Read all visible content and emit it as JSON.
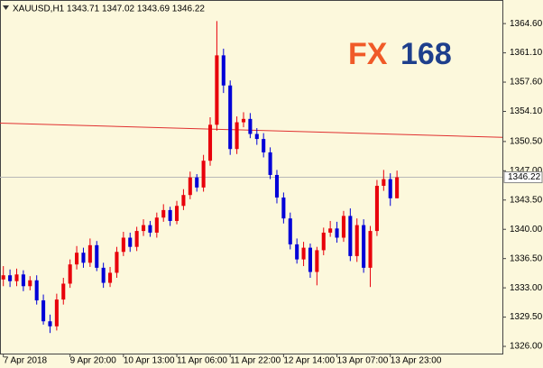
{
  "chart_data": {
    "type": "candlestick",
    "title": "XAUUSD,H1  1343.71 1347.02 1343.69 1346.22",
    "watermark": [
      "FX",
      "168"
    ],
    "bull_color": "#e8000b",
    "bear_color": "#0000d8",
    "open": [
      1334.0,
      1334.5,
      1333.8,
      1334.6,
      1333.2,
      1333.9,
      1331.5,
      1329.0,
      1328.4,
      1331.6,
      1333.5,
      1335.8,
      1337.2,
      1336.0,
      1338.1,
      1335.4,
      1333.6,
      1334.8,
      1337.3,
      1339.0,
      1337.9,
      1339.8,
      1340.5,
      1339.6,
      1341.4,
      1342.3,
      1341.0,
      1342.8,
      1344.1,
      1346.2,
      1345.0,
      1348.2,
      1352.5,
      1360.8,
      1357.2,
      1349.6,
      1352.8,
      1353.2,
      1351.4,
      1350.8,
      1349.2,
      1346.5,
      1343.8,
      1341.3,
      1338.2,
      1336.4,
      1337.8,
      1334.9,
      1337.5,
      1339.6,
      1340.1,
      1339.0,
      1341.6,
      1336.8,
      1340.5,
      1335.4,
      1339.8,
      1345.2,
      1346.0,
      1343.71
    ],
    "high": [
      1335.6,
      1335.2,
      1335.3,
      1335.1,
      1334.4,
      1334.5,
      1332.2,
      1329.8,
      1332.3,
      1334.2,
      1336.4,
      1338.0,
      1337.8,
      1338.9,
      1338.6,
      1336.0,
      1335.5,
      1337.9,
      1339.7,
      1339.6,
      1340.3,
      1341.2,
      1341.0,
      1342.0,
      1343.0,
      1342.7,
      1343.4,
      1344.8,
      1346.9,
      1346.6,
      1348.9,
      1353.4,
      1364.9,
      1361.6,
      1357.8,
      1353.5,
      1354.0,
      1353.9,
      1352.1,
      1351.5,
      1349.8,
      1347.1,
      1344.4,
      1342.0,
      1338.9,
      1338.5,
      1338.3,
      1337.9,
      1340.2,
      1341.0,
      1340.9,
      1342.2,
      1342.5,
      1341.3,
      1341.2,
      1340.4,
      1345.9,
      1347.1,
      1346.7,
      1347.02
    ],
    "low": [
      1333.2,
      1333.1,
      1333.2,
      1332.6,
      1332.7,
      1331.0,
      1328.6,
      1327.6,
      1327.9,
      1331.0,
      1333.0,
      1335.2,
      1335.4,
      1335.5,
      1335.0,
      1333.0,
      1333.1,
      1334.2,
      1336.8,
      1337.3,
      1337.4,
      1339.2,
      1339.1,
      1339.0,
      1340.9,
      1340.4,
      1340.6,
      1342.3,
      1343.6,
      1344.5,
      1344.5,
      1347.6,
      1351.8,
      1356.3,
      1348.9,
      1349.0,
      1352.2,
      1350.9,
      1350.1,
      1348.6,
      1346.0,
      1343.1,
      1340.7,
      1337.6,
      1335.9,
      1335.6,
      1334.2,
      1333.3,
      1336.9,
      1339.1,
      1338.4,
      1338.5,
      1336.2,
      1336.1,
      1334.8,
      1333.1,
      1339.2,
      1344.6,
      1342.8,
      1343.69
    ],
    "close": [
      1334.5,
      1333.8,
      1334.6,
      1333.2,
      1333.9,
      1331.5,
      1329.0,
      1328.4,
      1331.6,
      1333.5,
      1335.8,
      1337.2,
      1336.0,
      1338.1,
      1335.4,
      1333.6,
      1334.8,
      1337.3,
      1339.0,
      1337.9,
      1339.8,
      1340.5,
      1339.6,
      1341.4,
      1342.3,
      1341.0,
      1342.8,
      1344.1,
      1346.2,
      1345.0,
      1348.2,
      1352.5,
      1360.8,
      1357.2,
      1349.6,
      1352.8,
      1353.2,
      1351.4,
      1350.8,
      1349.2,
      1346.5,
      1343.8,
      1341.3,
      1338.2,
      1336.4,
      1337.8,
      1334.9,
      1337.5,
      1339.6,
      1340.1,
      1339.0,
      1341.6,
      1336.8,
      1340.5,
      1335.4,
      1339.8,
      1345.2,
      1346.0,
      1343.71,
      1346.22
    ],
    "xlim": [
      -0.5,
      74.8
    ],
    "xticks": [
      {
        "value": 0,
        "label": "7 Apr 2018"
      },
      {
        "value": 10,
        "label": "9 Apr 20:00"
      },
      {
        "value": 18,
        "label": "10 Apr 13:00"
      },
      {
        "value": 26,
        "label": "11 Apr 06:00"
      },
      {
        "value": 34,
        "label": "11 Apr 22:00"
      },
      {
        "value": 42,
        "label": "12 Apr 14:00"
      },
      {
        "value": 50,
        "label": "13 Apr 07:00"
      },
      {
        "value": 58,
        "label": "13 Apr 23:00"
      }
    ],
    "ylim": [
      1325.14,
      1367.42
    ],
    "yticks": [
      {
        "value": 1364.6,
        "label": "1364.60"
      },
      {
        "value": 1361.1,
        "label": "1361.10"
      },
      {
        "value": 1357.6,
        "label": "1357.60"
      },
      {
        "value": 1354.1,
        "label": "1354.10"
      },
      {
        "value": 1350.5,
        "label": "1350.50"
      },
      {
        "value": 1347.0,
        "label": "1347.00"
      },
      {
        "value": 1343.5,
        "label": "1343.50"
      },
      {
        "value": 1340.0,
        "label": "1340.00"
      },
      {
        "value": 1336.5,
        "label": "1336.50"
      },
      {
        "value": 1333.0,
        "label": "1333.00"
      },
      {
        "value": 1329.5,
        "label": "1329.50"
      },
      {
        "value": 1326.0,
        "label": "1326.00"
      }
    ],
    "current_price": {
      "value": 1346.22,
      "label": "1346.22",
      "color": "#b8b8b8"
    },
    "trendline": {
      "color": "#e03030",
      "values": [
        1352.7,
        1351.0
      ]
    }
  }
}
